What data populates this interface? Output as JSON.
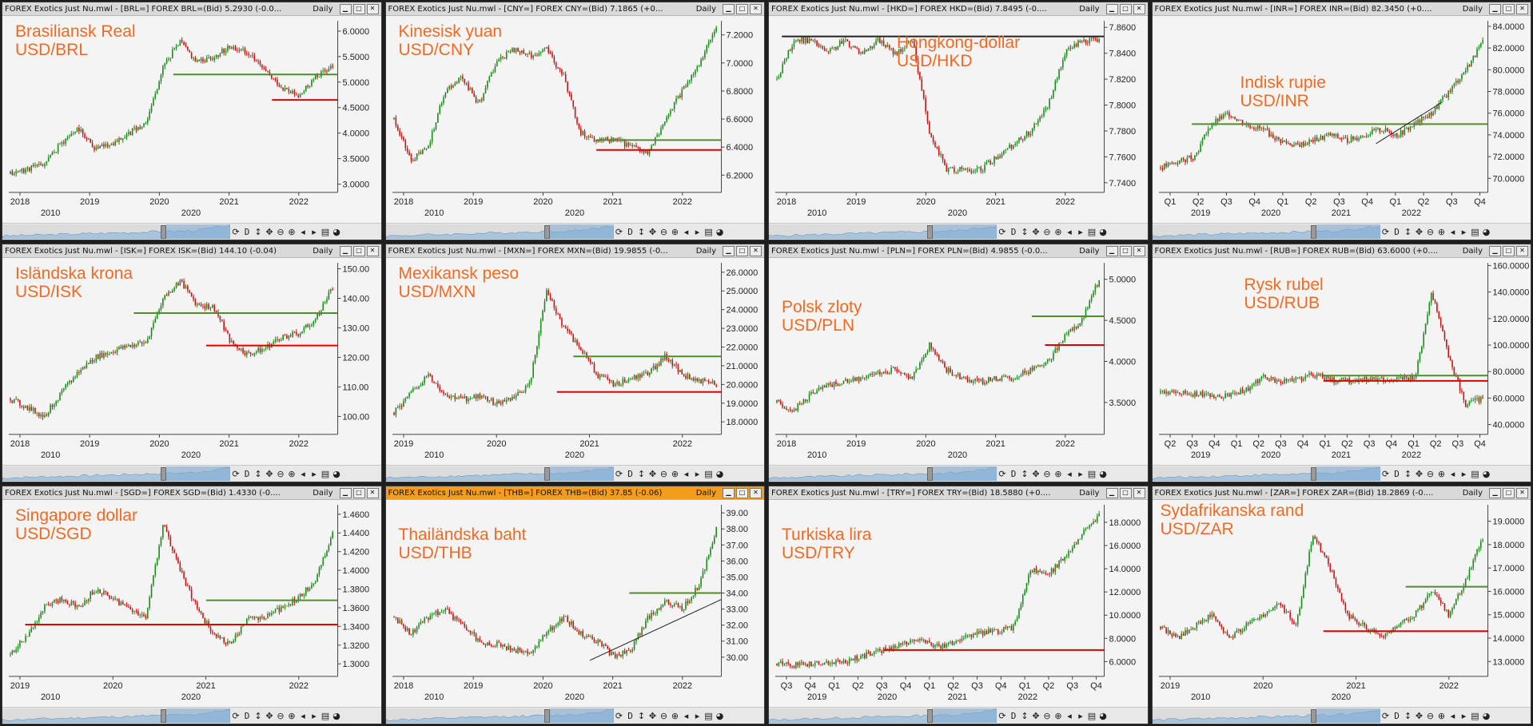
{
  "colors": {
    "window_bg": "#f4f4f4",
    "candle_up": "#1a8c1a",
    "candle_down": "#c41515",
    "label_orange": "#f26a22",
    "level_green": "#4d8f2a",
    "level_red": "#e00000",
    "trend_black": "#222222",
    "active_title": "#f39c1d"
  },
  "toolbar_icons": [
    "refresh-icon",
    "interval-label",
    "vertical-resize-icon",
    "move-icon",
    "zoom-out-icon",
    "zoom-in-icon",
    "prev-arrow-icon",
    "next-arrow-icon",
    "menu-icon",
    "palette-icon"
  ],
  "toolbar_d_label": "D",
  "window_buttons": {
    "minimize": "▁",
    "maximize": "□",
    "close": "✕"
  },
  "charts": [
    {
      "id": "brl",
      "title": "FOREX Exotics Just Nu.mwl - [BRL=] FOREX BRL=(Bid)   5.2930  (-0.0...",
      "period": "Daily",
      "label1": "Brasiliansk Real",
      "label2": "USD/BRL",
      "yticks": [
        "6.0000",
        "5.5000",
        "5.0000",
        "4.5000",
        "4.0000",
        "3.5000",
        "3.0000"
      ],
      "ylim": [
        2.9,
        6.2
      ],
      "xticks": [
        "2018",
        "2019",
        "2020",
        "2021",
        "2022"
      ],
      "subticks": [
        "2010",
        "2020"
      ],
      "path": [
        3.2,
        3.3,
        3.4,
        3.8,
        4.1,
        3.7,
        3.8,
        4.0,
        4.2,
        5.3,
        5.8,
        5.4,
        5.5,
        5.7,
        5.6,
        5.2,
        4.9,
        4.7,
        5.1,
        5.3
      ],
      "levels": [
        {
          "y": 5.15,
          "color": "green",
          "x0": 0.5,
          "x1": 1.0
        },
        {
          "y": 4.65,
          "color": "red",
          "x0": 0.8,
          "x1": 1.0
        }
      ]
    },
    {
      "id": "cny",
      "title": "FOREX Exotics Just Nu.mwl - [CNY=] FOREX CNY=(Bid)   7.1865  (+0...",
      "period": "Daily",
      "label1": "Kinesisk yuan",
      "label2": "USD/CNY",
      "yticks": [
        "7.2000",
        "7.0000",
        "6.8000",
        "6.6000",
        "6.4000",
        "6.2000"
      ],
      "ylim": [
        6.1,
        7.3
      ],
      "xticks": [
        "2018",
        "2019",
        "2020",
        "2021",
        "2022"
      ],
      "subticks": [
        "2010",
        "2020"
      ],
      "path": [
        6.6,
        6.3,
        6.4,
        6.8,
        6.9,
        6.7,
        7.0,
        7.1,
        7.05,
        7.1,
        6.9,
        6.5,
        6.45,
        6.45,
        6.4,
        6.35,
        6.6,
        6.8,
        7.0,
        7.25
      ],
      "levels": [
        {
          "y": 6.45,
          "color": "green",
          "x0": 0.62,
          "x1": 1.0
        },
        {
          "y": 6.38,
          "color": "red",
          "x0": 0.62,
          "x1": 1.0
        }
      ]
    },
    {
      "id": "hkd",
      "title": "FOREX Exotics Just Nu.mwl - [HKD=] FOREX HKD=(Bid)   7.8495  (-0....",
      "period": "Daily",
      "label1": "Hongkong-dollar",
      "label2": "USD/HKD",
      "yticks": [
        "7.8600",
        "7.8400",
        "7.8200",
        "7.8000",
        "7.7800",
        "7.7600",
        "7.7400"
      ],
      "ylim": [
        7.735,
        7.865
      ],
      "xticks": [
        "2018",
        "2019",
        "2020",
        "2021",
        "2022"
      ],
      "subticks": [
        "2010",
        "2020"
      ],
      "path": [
        7.82,
        7.85,
        7.85,
        7.84,
        7.85,
        7.84,
        7.85,
        7.84,
        7.85,
        7.78,
        7.75,
        7.75,
        7.75,
        7.76,
        7.77,
        7.78,
        7.8,
        7.84,
        7.85,
        7.85
      ],
      "levels": [
        {
          "y": 7.853,
          "color": "black",
          "x0": 0.02,
          "x1": 1.0
        }
      ]
    },
    {
      "id": "inr",
      "title": "FOREX Exotics Just Nu.mwl - [INR=] FOREX INR=(Bid)   82.3450  (+0....",
      "period": "Daily",
      "label1": "Indisk rupie",
      "label2": "USD/INR",
      "yticks": [
        "84.0000",
        "82.0000",
        "80.0000",
        "78.0000",
        "76.0000",
        "74.0000",
        "72.0000",
        "70.0000"
      ],
      "ylim": [
        69,
        84.5
      ],
      "xticks": [
        "Q1",
        "Q2",
        "Q3",
        "Q4",
        "Q1",
        "Q2",
        "Q3",
        "Q4",
        "Q1",
        "Q2",
        "Q3",
        "Q4"
      ],
      "subticks": [
        "2019",
        "2020",
        "2021",
        "2022"
      ],
      "path": [
        71,
        71.5,
        72,
        75,
        76,
        75,
        74.5,
        73.5,
        73,
        73.5,
        74,
        73.5,
        74,
        74.5,
        74,
        75,
        76,
        78,
        80,
        82.5
      ],
      "levels": [
        {
          "y": 75,
          "color": "green",
          "x0": 0.1,
          "x1": 1.0
        },
        {
          "y": 0,
          "color": "trend",
          "x0": 0.66,
          "x1": 0.86,
          "ya": 73.2,
          "yb": 77
        }
      ]
    },
    {
      "id": "isk",
      "title": "FOREX Exotics Just Nu.mwl - [ISK=] FOREX ISK=(Bid)   144.10  (-0.04)",
      "period": "Daily",
      "label1": "Isländska krona",
      "label2": "USD/ISK",
      "yticks": [
        "150.00",
        "140.00",
        "130.00",
        "120.00",
        "110.00",
        "100.00"
      ],
      "ylim": [
        95,
        152
      ],
      "xticks": [
        "2018",
        "2019",
        "2020",
        "2021",
        "2022"
      ],
      "subticks": [
        "2010",
        "2020"
      ],
      "path": [
        106,
        103,
        100,
        108,
        115,
        120,
        122,
        124,
        125,
        140,
        146,
        138,
        137,
        125,
        121,
        123,
        127,
        128,
        133,
        144
      ],
      "levels": [
        {
          "y": 135,
          "color": "green",
          "x0": 0.38,
          "x1": 1.0
        },
        {
          "y": 124,
          "color": "red",
          "x0": 0.6,
          "x1": 1.0
        }
      ]
    },
    {
      "id": "mxn",
      "title": "FOREX Exotics Just Nu.mwl - [MXN=] FOREX MXN=(Bid)   19.9855  (-0...",
      "period": "Daily",
      "label1": "Mexikansk peso",
      "label2": "USD/MXN",
      "yticks": [
        "26.0000",
        "25.0000",
        "24.0000",
        "23.0000",
        "22.0000",
        "21.0000",
        "20.0000",
        "19.0000",
        "18.0000"
      ],
      "ylim": [
        17.5,
        26.5
      ],
      "xticks": [
        "2019",
        "2020",
        "2021",
        "2022"
      ],
      "subticks": [
        "2010",
        "2020"
      ],
      "path": [
        18.5,
        19.5,
        20.5,
        19.5,
        19.2,
        19.4,
        19.0,
        19.3,
        20.0,
        25.0,
        23.0,
        22.0,
        20.5,
        20.0,
        20.3,
        20.6,
        21.5,
        20.5,
        20.2,
        20.0
      ],
      "levels": [
        {
          "y": 21.5,
          "color": "green",
          "x0": 0.55,
          "x1": 1.0
        },
        {
          "y": 19.6,
          "color": "red",
          "x0": 0.5,
          "x1": 1.0
        }
      ]
    },
    {
      "id": "pln",
      "title": "FOREX Exotics Just Nu.mwl - [PLN=] FOREX PLN=(Bid)   4.9855  (-0.0...",
      "period": "Daily",
      "label1": "Polsk zloty",
      "label2": "USD/PLN",
      "yticks": [
        "5.0000",
        "4.5000",
        "4.0000",
        "3.5000"
      ],
      "ylim": [
        3.15,
        5.2
      ],
      "xticks": [
        "2018",
        "2019",
        "2020",
        "2021",
        "2022"
      ],
      "subticks": [
        "2010",
        "2020"
      ],
      "path": [
        3.5,
        3.4,
        3.6,
        3.7,
        3.75,
        3.8,
        3.85,
        3.9,
        3.8,
        4.2,
        3.9,
        3.8,
        3.75,
        3.8,
        3.8,
        3.9,
        4.0,
        4.3,
        4.5,
        5.0
      ],
      "levels": [
        {
          "y": 4.55,
          "color": "green",
          "x0": 0.78,
          "x1": 1.0
        },
        {
          "y": 4.2,
          "color": "red",
          "x0": 0.82,
          "x1": 1.0
        }
      ]
    },
    {
      "id": "rub",
      "title": "FOREX Exotics Just Nu.mwl - [RUB=] FOREX RUB=(Bid)   63.6000  (+0....",
      "period": "Daily",
      "label1": "Rysk rubel",
      "label2": "USD/RUB",
      "yticks": [
        "160.0000",
        "140.0000",
        "120.0000",
        "100.0000",
        "80.0000",
        "60.0000",
        "40.0000"
      ],
      "ylim": [
        35,
        162
      ],
      "xticks": [
        "Q2",
        "Q3",
        "Q4",
        "Q1",
        "Q2",
        "Q3",
        "Q4",
        "Q1",
        "Q2",
        "Q3",
        "Q4",
        "Q1",
        "Q2",
        "Q3",
        "Q4"
      ],
      "subticks": [
        "2019",
        "2020",
        "2021",
        "2022"
      ],
      "path": [
        64,
        64,
        63,
        62,
        62,
        66,
        76,
        72,
        74,
        78,
        74,
        73,
        74,
        73,
        74,
        75,
        140,
        90,
        55,
        60
      ],
      "levels": [
        {
          "y": 77,
          "color": "green",
          "x0": 0.5,
          "x1": 1.0
        },
        {
          "y": 73,
          "color": "red",
          "x0": 0.5,
          "x1": 1.0
        }
      ]
    },
    {
      "id": "sgd",
      "title": "FOREX Exotics Just Nu.mwl - [SGD=] FOREX SGD=(Bid)   1.4330  (-0....",
      "period": "Daily",
      "label1": "Singapore dollar",
      "label2": "USD/SGD",
      "yticks": [
        "1.4600",
        "1.4400",
        "1.4200",
        "1.4000",
        "1.3800",
        "1.3600",
        "1.3400",
        "1.3200",
        "1.3000"
      ],
      "ylim": [
        1.29,
        1.47
      ],
      "xticks": [
        "2019",
        "2020",
        "2021",
        "2022"
      ],
      "subticks": [
        "2010",
        "2020"
      ],
      "path": [
        1.31,
        1.33,
        1.36,
        1.37,
        1.36,
        1.38,
        1.37,
        1.36,
        1.35,
        1.45,
        1.4,
        1.36,
        1.33,
        1.32,
        1.35,
        1.35,
        1.36,
        1.37,
        1.39,
        1.44
      ],
      "levels": [
        {
          "y": 1.368,
          "color": "green",
          "x0": 0.6,
          "x1": 1.0
        },
        {
          "y": 1.342,
          "color": "red",
          "x0": 0.05,
          "x1": 1.0
        }
      ]
    },
    {
      "id": "thb",
      "title": "FOREX Exotics Just Nu.mwl - [THB=] FOREX THB=(Bid)   37.85  (-0.06)",
      "period": "Daily",
      "active": true,
      "label1": "Thailändska baht",
      "label2": "USD/THB",
      "yticks": [
        "39.00",
        "38.00",
        "37.00",
        "36.00",
        "35.00",
        "34.00",
        "33.00",
        "32.00",
        "31.00",
        "30.00"
      ],
      "ylim": [
        29,
        39.5
      ],
      "xticks": [
        "2018",
        "2019",
        "2020",
        "2021",
        "2022"
      ],
      "subticks": [
        "2010",
        "2020"
      ],
      "path": [
        32.5,
        31.5,
        32.5,
        33.0,
        32.0,
        31.0,
        30.8,
        30.5,
        30.2,
        31.5,
        32.5,
        31.5,
        31.0,
        30.0,
        30.5,
        32.5,
        33.5,
        33.0,
        34.5,
        38.0
      ],
      "levels": [
        {
          "y": 34.0,
          "color": "green",
          "x0": 0.72,
          "x1": 1.0
        },
        {
          "y": 0,
          "color": "trend",
          "x0": 0.6,
          "x1": 1.0,
          "ya": 29.8,
          "yb": 33.6
        }
      ]
    },
    {
      "id": "try",
      "title": "FOREX Exotics Just Nu.mwl - [TRY=] FOREX TRY=(Bid)   18.5880  (+0....",
      "period": "Daily",
      "label1": "Turkiska lira",
      "label2": "USD/TRY",
      "yticks": [
        "18.0000",
        "16.0000",
        "14.0000",
        "12.0000",
        "10.0000",
        "8.0000",
        "6.0000"
      ],
      "ylim": [
        5,
        19.5
      ],
      "xticks": [
        "Q3",
        "Q4",
        "Q1",
        "Q2",
        "Q3",
        "Q4",
        "Q1",
        "Q2",
        "Q3",
        "Q4",
        "Q1",
        "Q2",
        "Q3",
        "Q4"
      ],
      "subticks": [
        "2019",
        "2020",
        "2021",
        "2022"
      ],
      "path": [
        5.8,
        5.7,
        5.8,
        5.9,
        6.0,
        6.5,
        6.9,
        7.2,
        8.0,
        7.5,
        7.3,
        8.2,
        8.5,
        8.6,
        9.0,
        14.0,
        13.5,
        15.0,
        17.0,
        18.5
      ],
      "levels": [
        {
          "y": 7.0,
          "color": "red",
          "x0": 0.33,
          "x1": 1.0
        }
      ]
    },
    {
      "id": "zar",
      "title": "FOREX Exotics Just Nu.mwl - [ZAR=] FOREX ZAR=(Bid)   18.2869  (-0....",
      "period": "Daily",
      "label1": "Sydafrikanska rand",
      "label2": "USD/ZAR",
      "yticks": [
        "19.0000",
        "18.0000",
        "17.0000",
        "16.0000",
        "15.0000",
        "14.0000",
        "13.0000"
      ],
      "ylim": [
        12.5,
        19.7
      ],
      "xticks": [
        "2019",
        "2020",
        "2021",
        "2022"
      ],
      "subticks": [
        "2010",
        "2020"
      ],
      "path": [
        14.5,
        14.0,
        14.5,
        15.0,
        14.0,
        14.5,
        15.0,
        15.5,
        14.5,
        18.5,
        17.0,
        15.0,
        14.5,
        14.0,
        14.5,
        15.0,
        16.0,
        15.0,
        16.5,
        18.3
      ],
      "levels": [
        {
          "y": 16.2,
          "color": "green",
          "x0": 0.75,
          "x1": 1.0
        },
        {
          "y": 14.3,
          "color": "red",
          "x0": 0.5,
          "x1": 1.0
        }
      ]
    }
  ]
}
